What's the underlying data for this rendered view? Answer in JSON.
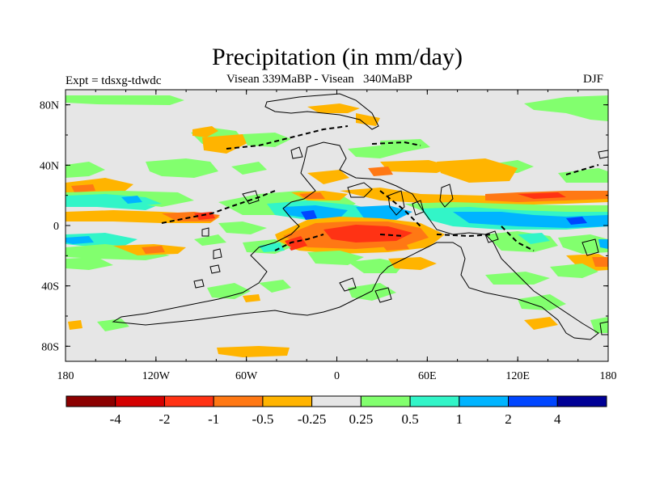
{
  "header": {
    "title": "Precipitation (in mm/day)",
    "left_label": "Expt = tdsxg-tdwdc",
    "center_label": "Visean 339MaBP - Visean   340MaBP",
    "right_label": "DJF"
  },
  "axes": {
    "x_ticks": [
      {
        "label": "180",
        "lon": -180
      },
      {
        "label": "120W",
        "lon": -120
      },
      {
        "label": "60W",
        "lon": -60
      },
      {
        "label": "0",
        "lon": 0
      },
      {
        "label": "60E",
        "lon": 60
      },
      {
        "label": "120E",
        "lon": 120
      },
      {
        "label": "180",
        "lon": 180
      }
    ],
    "y_ticks": [
      {
        "label": "80N",
        "lat": 80
      },
      {
        "label": "40N",
        "lat": 40
      },
      {
        "label": "0",
        "lat": 0
      },
      {
        "label": "40S",
        "lat": -40
      },
      {
        "label": "80S",
        "lat": -80
      }
    ],
    "lon_range": [
      -180,
      180
    ],
    "lat_range": [
      -90,
      90
    ]
  },
  "colorbar": {
    "colors": [
      "#8b0000",
      "#d40000",
      "#ff3214",
      "#ff7814",
      "#ffb400",
      "#e6e6e6",
      "#82ff6e",
      "#32f5c8",
      "#00b4ff",
      "#0046ff",
      "#000096"
    ],
    "labels": [
      "-4",
      "-2",
      "-1",
      "-0.5",
      "-0.25",
      "0.25",
      "0.5",
      "1",
      "2",
      "4"
    ]
  },
  "colors": {
    "background": "#e6e6e6",
    "orange": "#ffb400",
    "dark_orange": "#ff7814",
    "red": "#ff3214",
    "green": "#82ff6e",
    "teal": "#32f5c8",
    "blue": "#00b4ff",
    "dark_blue": "#0046ff"
  }
}
